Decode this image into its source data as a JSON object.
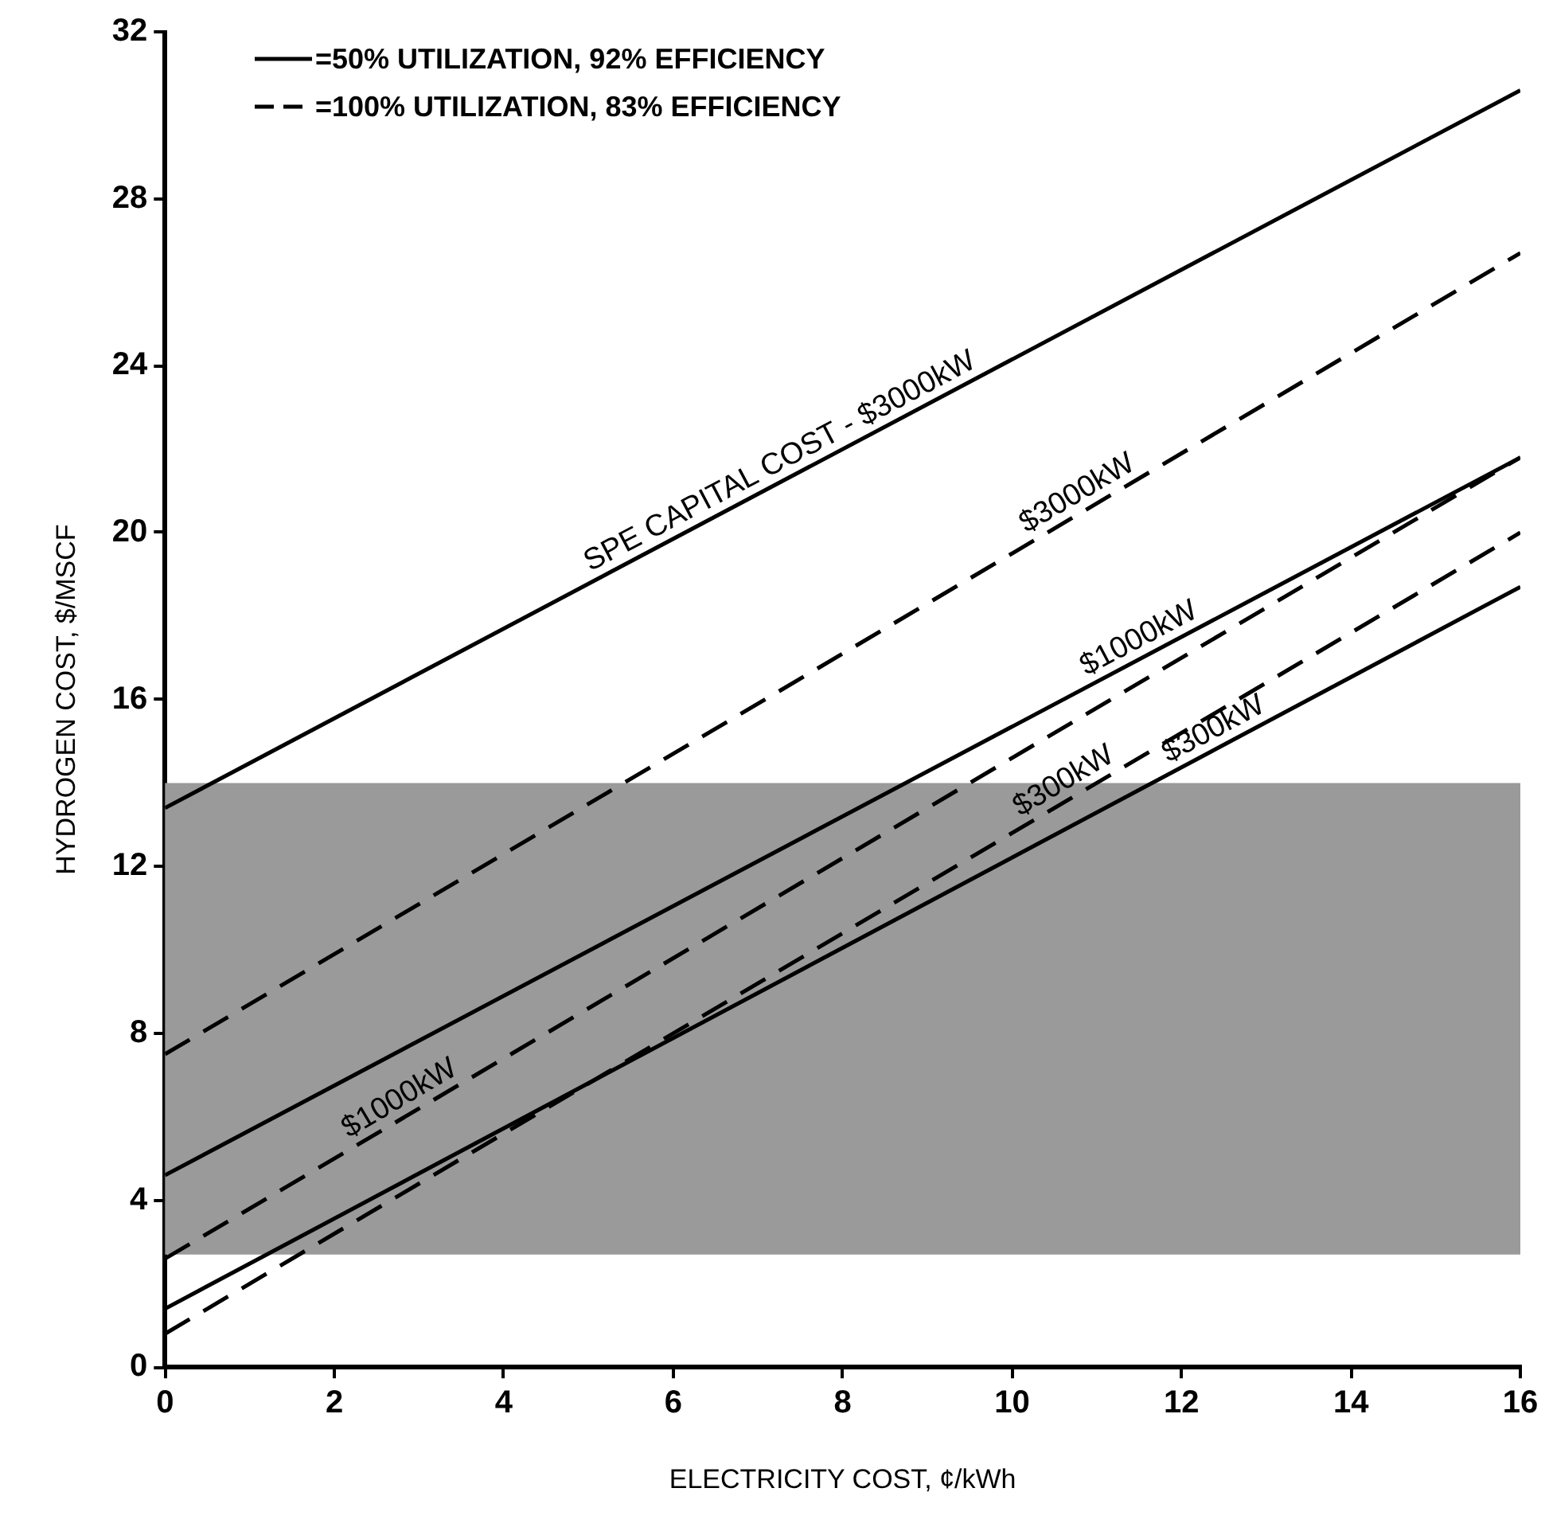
{
  "chart_data": {
    "type": "line",
    "xlabel": "ELECTRICITY COST, ¢/kWh",
    "ylabel": "HYDROGEN COST, $/MSCF",
    "x": [
      0,
      16
    ],
    "series": [
      {
        "name": "SPE CAPITAL COST - $3000kW",
        "color": "#000000",
        "line_style": "solid",
        "values": [
          13.4,
          30.6
        ]
      },
      {
        "name": "$3000kW",
        "color": "#000000",
        "line_style": "dashed",
        "values": [
          7.5,
          26.7
        ]
      },
      {
        "name": "$1000kW",
        "color": "#000000",
        "line_style": "solid",
        "values": [
          4.6,
          21.8
        ]
      },
      {
        "name": "$1000kW",
        "color": "#000000",
        "line_style": "dashed",
        "values": [
          2.6,
          21.8
        ]
      },
      {
        "name": "$300kW",
        "color": "#000000",
        "line_style": "dashed",
        "values": [
          0.8,
          20.0
        ]
      },
      {
        "name": "$300kW",
        "color": "#000000",
        "line_style": "solid",
        "values": [
          1.4,
          18.7
        ]
      }
    ],
    "bands": [
      {
        "axis": "y",
        "from": 2.7,
        "to": 14,
        "color": "#9a9a9a"
      }
    ],
    "annotations": [
      "=50% UTILIZATION, 92% EFFICIENCY",
      "=100% UTILIZATION, 83% EFFICIENCY"
    ],
    "xlim": [
      0,
      16
    ],
    "xticks": [
      0,
      2,
      4,
      6,
      8,
      10,
      12,
      14,
      16
    ],
    "ylim": [
      0,
      32
    ],
    "yticks": [
      0,
      4,
      8,
      12,
      16,
      20,
      24,
      28,
      32
    ],
    "grid": false,
    "marker": "none"
  }
}
